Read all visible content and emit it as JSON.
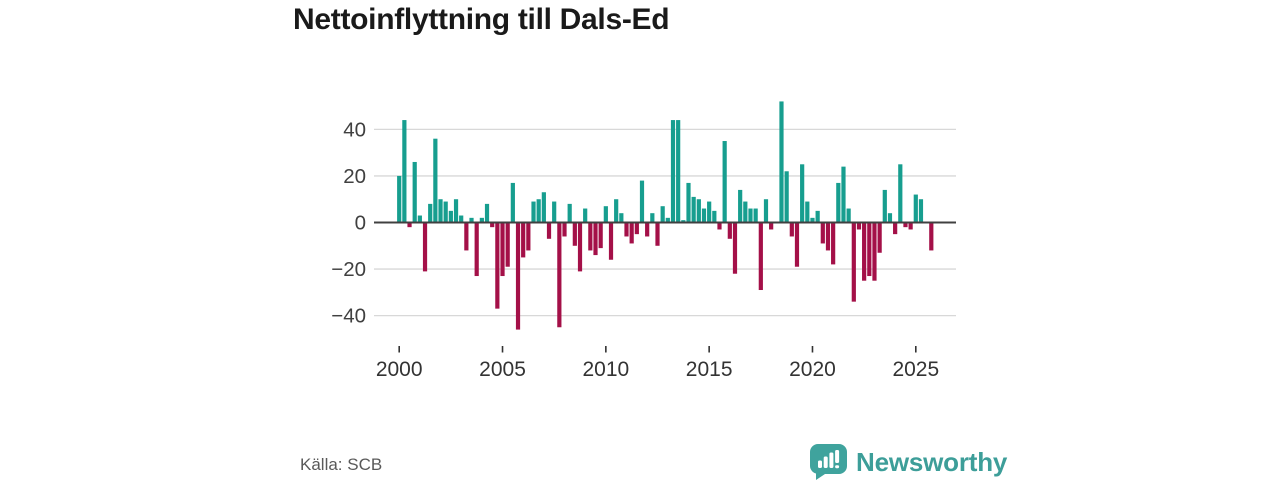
{
  "title": "Nettoinflyttning till Dals-Ed",
  "source": "Källa: SCB",
  "logo": {
    "text": "Newsworthy"
  },
  "colors": {
    "positive": "#179e8f",
    "negative": "#a41048",
    "grid": "#d8d8d8",
    "zero_line": "#404040",
    "tick": "#333333",
    "axis_text": "#404040",
    "title_text": "#1a1a1a",
    "source_text": "#595959",
    "logo_teal": "#3fa39d",
    "logo_text_color": "#3d9e99"
  },
  "chart_data": {
    "type": "bar",
    "title": "Nettoinflyttning till Dals-Ed",
    "frequency": "quarterly",
    "x_start": "2000-Q1",
    "x_end": "2025-Q4",
    "grid": true,
    "ylim": [
      -50,
      56
    ],
    "y_ticks": [
      {
        "label": "40",
        "value": 40
      },
      {
        "label": "20",
        "value": 20
      },
      {
        "label": "0",
        "value": 0
      },
      {
        "label": "−20",
        "value": -20
      },
      {
        "label": "−40",
        "value": -40
      }
    ],
    "x_ticks": [
      {
        "label": "2000",
        "year": 2000
      },
      {
        "label": "2005",
        "year": 2005
      },
      {
        "label": "2010",
        "year": 2010
      },
      {
        "label": "2015",
        "year": 2015
      },
      {
        "label": "2020",
        "year": 2020
      },
      {
        "label": "2025",
        "year": 2025
      }
    ],
    "values": [
      20,
      44,
      -2,
      26,
      3,
      -21,
      8,
      36,
      10,
      9,
      5,
      10,
      3,
      -12,
      2,
      -23,
      2,
      8,
      -2,
      -37,
      -23,
      -19,
      17,
      -46,
      -15,
      -12,
      9,
      10,
      13,
      -7,
      9,
      -45,
      -6,
      8,
      -10,
      -21,
      6,
      -12,
      -14,
      -11,
      7,
      -16,
      10,
      4,
      -6,
      -9,
      -5,
      18,
      -6,
      4,
      -10,
      7,
      2,
      44,
      44,
      1,
      17,
      11,
      10,
      6,
      9,
      5,
      -3,
      35,
      -7,
      -22,
      14,
      9,
      6,
      6,
      -29,
      10,
      -3,
      0,
      52,
      22,
      -6,
      -19,
      25,
      9,
      2,
      5,
      -9,
      -12,
      -18,
      17,
      24,
      6,
      -34,
      -3,
      -25,
      -23,
      -25,
      -13,
      14,
      4,
      -5,
      25,
      -2,
      -3,
      12,
      10,
      0,
      -12
    ]
  }
}
